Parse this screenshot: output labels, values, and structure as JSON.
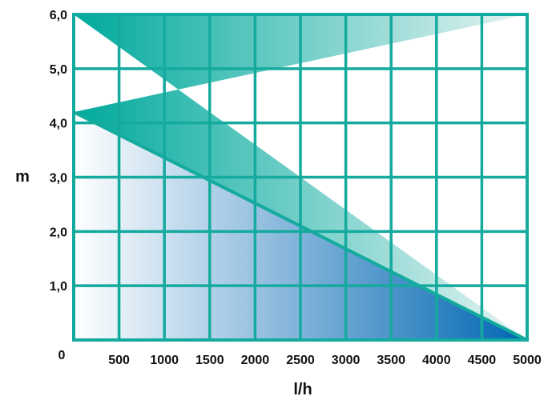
{
  "chart_data": {
    "type": "area",
    "title": "",
    "xlabel": "l/h",
    "ylabel": "m",
    "xlim": [
      0,
      5000
    ],
    "ylim": [
      0,
      6.0
    ],
    "x_ticks": [
      "500",
      "1000",
      "1500",
      "2000",
      "2500",
      "3000",
      "3500",
      "4000",
      "4500",
      "5000"
    ],
    "y_ticks": [
      "1,0",
      "2,0",
      "3,0",
      "4,0",
      "5,0",
      "6,0"
    ],
    "origin_label": "0",
    "grid": true,
    "series": [
      {
        "x": [
          0,
          5000
        ],
        "y": [
          4.2,
          0
        ]
      }
    ],
    "colors": {
      "grid": "#14aa9e",
      "area_top_start": "#00a99d",
      "area_top_end": "#e6f4f3",
      "area_bottom_start": "#ffffff",
      "area_bottom_end": "#0066b3"
    }
  }
}
